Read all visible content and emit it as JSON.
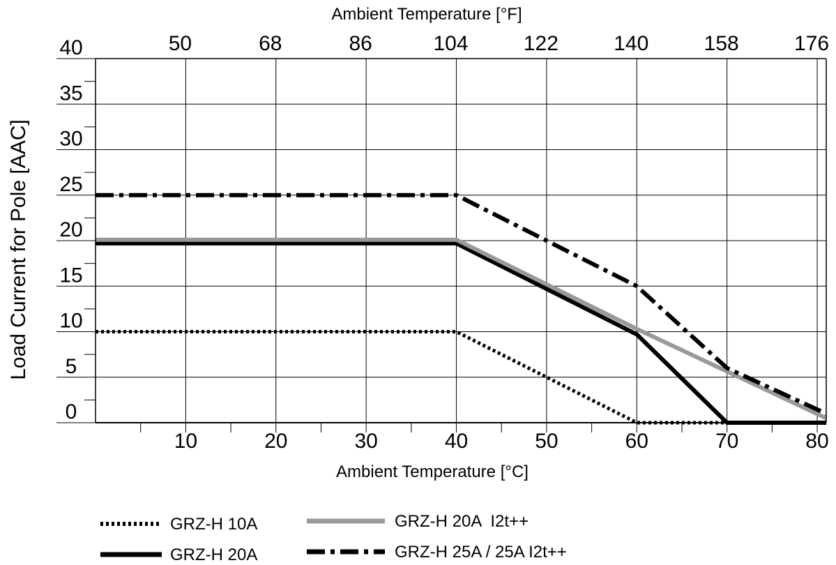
{
  "chart_data": {
    "type": "line",
    "xlabel": "Ambient Temperature [°C]",
    "x2label": "Ambient Temperature [°F]",
    "ylabel": "Load Current for Pole [AAC]",
    "xlim": [
      0,
      81
    ],
    "ylim": [
      0,
      40
    ],
    "x_ticks": [
      10,
      20,
      30,
      40,
      50,
      60,
      70,
      80
    ],
    "x_tick_labels": [
      "10",
      "20",
      "30",
      "40",
      "50",
      "60",
      "70",
      "80"
    ],
    "x_minor_ticks": [
      5,
      15,
      25,
      35,
      45,
      55,
      65,
      75
    ],
    "x2_ticks": [
      10,
      20,
      30,
      40,
      50,
      60,
      70,
      80
    ],
    "x2_tick_labels": [
      "50",
      "68",
      "86",
      "104",
      "122",
      "140",
      "158",
      "176"
    ],
    "y_ticks": [
      0,
      5,
      10,
      15,
      20,
      25,
      30,
      35,
      40
    ],
    "y_tick_labels": [
      "0",
      "5",
      "10",
      "15",
      "20",
      "25",
      "30",
      "35",
      "40"
    ],
    "y_minor_ticks": [
      2.5,
      7.5,
      12.5,
      17.5,
      22.5,
      27.5,
      32.5,
      37.5
    ],
    "grid": true,
    "legend_position": "bottom",
    "series": [
      {
        "name": "GRZ-H 10A",
        "style": "dotted",
        "color": "#000000",
        "x": [
          0,
          40,
          50,
          60,
          81
        ],
        "y": [
          10,
          10,
          5,
          0,
          0
        ]
      },
      {
        "name": "GRZ-H 20A",
        "style": "solid",
        "color": "#000000",
        "x": [
          0,
          40,
          50,
          60,
          70,
          81
        ],
        "y": [
          19.7,
          19.7,
          14.7,
          9.7,
          0,
          0
        ]
      },
      {
        "name": "GRZ-H 20A  I2t++",
        "style": "solid",
        "color": "#999999",
        "x": [
          0,
          40,
          60,
          81
        ],
        "y": [
          20.1,
          20.1,
          10.3,
          0.5
        ]
      },
      {
        "name": "GRZ-H 25A / 25A I2t++",
        "style": "dashdot",
        "color": "#000000",
        "x": [
          0,
          40,
          50,
          60,
          70,
          81
        ],
        "y": [
          25,
          25,
          20,
          15,
          6,
          1
        ]
      }
    ]
  }
}
